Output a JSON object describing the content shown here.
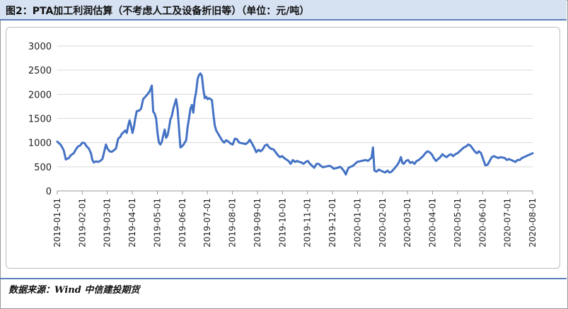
{
  "header": {
    "title": "图2：PTA加工利润估算（不考虑人工及设备折旧等）（单位：元/吨）"
  },
  "footer": {
    "source": "数据来源：Wind  中信建投期货"
  },
  "colors": {
    "line": "#4472c4",
    "header_bg": "#d6e2f2",
    "rule": "#5b7fb8"
  },
  "chart_data": {
    "type": "line",
    "title": "PTA加工利润估算（不考虑人工及设备折旧等）",
    "xlabel": "",
    "ylabel": "元/吨",
    "ylim": [
      0,
      3000
    ],
    "yticks": [
      0,
      500,
      1000,
      1500,
      2000,
      2500,
      3000
    ],
    "xticks": [
      "2019-01-01",
      "2019-02-01",
      "2019-03-01",
      "2019-04-01",
      "2019-05-01",
      "2019-06-01",
      "2019-07-01",
      "2019-08-01",
      "2019-09-01",
      "2019-10-01",
      "2019-11-01",
      "2019-12-01",
      "2020-01-01",
      "2020-02-01",
      "2020-03-01",
      "2020-04-01",
      "2020-05-01",
      "2020-06-01",
      "2020-07-01",
      "2020-08-01"
    ],
    "legend": "none",
    "series": [
      {
        "name": "PTA加工利润",
        "points": [
          [
            0,
            1020
          ],
          [
            5,
            950
          ],
          [
            9,
            840
          ],
          [
            12,
            650
          ],
          [
            16,
            680
          ],
          [
            19,
            740
          ],
          [
            23,
            780
          ],
          [
            26,
            860
          ],
          [
            29,
            920
          ],
          [
            32,
            940
          ],
          [
            35,
            1000
          ],
          [
            38,
            990
          ],
          [
            41,
            920
          ],
          [
            44,
            880
          ],
          [
            47,
            780
          ],
          [
            49,
            640
          ],
          [
            51,
            590
          ],
          [
            54,
            610
          ],
          [
            57,
            600
          ],
          [
            60,
            620
          ],
          [
            63,
            660
          ],
          [
            66,
            840
          ],
          [
            68,
            960
          ],
          [
            70,
            880
          ],
          [
            73,
            820
          ],
          [
            76,
            810
          ],
          [
            79,
            840
          ],
          [
            82,
            880
          ],
          [
            85,
            1080
          ],
          [
            88,
            1120
          ],
          [
            90,
            1180
          ],
          [
            93,
            1220
          ],
          [
            95,
            1250
          ],
          [
            97,
            1200
          ],
          [
            99,
            1350
          ],
          [
            101,
            1460
          ],
          [
            103,
            1350
          ],
          [
            105,
            1200
          ],
          [
            107,
            1320
          ],
          [
            109,
            1500
          ],
          [
            111,
            1650
          ],
          [
            114,
            1660
          ],
          [
            117,
            1700
          ],
          [
            120,
            1900
          ],
          [
            123,
            1950
          ],
          [
            126,
            2000
          ],
          [
            129,
            2060
          ],
          [
            132,
            2180
          ],
          [
            134,
            1640
          ],
          [
            136,
            1600
          ],
          [
            138,
            1500
          ],
          [
            140,
            1200
          ],
          [
            142,
            1000
          ],
          [
            144,
            960
          ],
          [
            146,
            1020
          ],
          [
            148,
            1150
          ],
          [
            150,
            1270
          ],
          [
            152,
            1100
          ],
          [
            154,
            1150
          ],
          [
            156,
            1300
          ],
          [
            158,
            1480
          ],
          [
            160,
            1550
          ],
          [
            162,
            1700
          ],
          [
            164,
            1800
          ],
          [
            166,
            1900
          ],
          [
            168,
            1700
          ],
          [
            170,
            1300
          ],
          [
            172,
            900
          ],
          [
            174,
            920
          ],
          [
            176,
            950
          ],
          [
            178,
            1000
          ],
          [
            180,
            1050
          ],
          [
            182,
            1320
          ],
          [
            184,
            1500
          ],
          [
            186,
            1700
          ],
          [
            188,
            1780
          ],
          [
            190,
            1620
          ],
          [
            192,
            1900
          ],
          [
            194,
            2050
          ],
          [
            196,
            2320
          ],
          [
            198,
            2400
          ],
          [
            200,
            2430
          ],
          [
            202,
            2380
          ],
          [
            204,
            2100
          ],
          [
            206,
            1920
          ],
          [
            208,
            1950
          ],
          [
            210,
            1900
          ],
          [
            212,
            1920
          ],
          [
            214,
            1900
          ],
          [
            216,
            1880
          ],
          [
            218,
            1600
          ],
          [
            220,
            1350
          ],
          [
            222,
            1250
          ],
          [
            224,
            1200
          ],
          [
            226,
            1150
          ],
          [
            228,
            1100
          ],
          [
            230,
            1050
          ],
          [
            233,
            1000
          ],
          [
            236,
            1050
          ],
          [
            239,
            1020
          ],
          [
            242,
            980
          ],
          [
            245,
            960
          ],
          [
            248,
            1080
          ],
          [
            251,
            1070
          ],
          [
            254,
            1000
          ],
          [
            257,
            990
          ],
          [
            260,
            980
          ],
          [
            263,
            970
          ],
          [
            266,
            1000
          ],
          [
            269,
            1060
          ],
          [
            272,
            980
          ],
          [
            275,
            900
          ],
          [
            278,
            800
          ],
          [
            281,
            850
          ],
          [
            284,
            820
          ],
          [
            287,
            860
          ],
          [
            290,
            940
          ],
          [
            293,
            960
          ],
          [
            296,
            900
          ],
          [
            299,
            870
          ],
          [
            302,
            860
          ],
          [
            305,
            800
          ],
          [
            308,
            740
          ],
          [
            311,
            700
          ],
          [
            314,
            720
          ],
          [
            317,
            680
          ],
          [
            320,
            650
          ],
          [
            323,
            620
          ],
          [
            326,
            560
          ],
          [
            329,
            640
          ],
          [
            332,
            600
          ],
          [
            335,
            620
          ],
          [
            338,
            600
          ],
          [
            341,
            590
          ],
          [
            344,
            560
          ],
          [
            347,
            600
          ],
          [
            350,
            620
          ],
          [
            353,
            560
          ],
          [
            356,
            520
          ],
          [
            359,
            480
          ],
          [
            362,
            560
          ],
          [
            365,
            560
          ],
          [
            368,
            520
          ],
          [
            371,
            490
          ],
          [
            374,
            500
          ],
          [
            377,
            510
          ],
          [
            380,
            520
          ],
          [
            383,
            500
          ],
          [
            386,
            460
          ],
          [
            389,
            470
          ],
          [
            392,
            480
          ],
          [
            395,
            500
          ],
          [
            398,
            460
          ],
          [
            401,
            400
          ],
          [
            403,
            340
          ],
          [
            405,
            420
          ],
          [
            407,
            480
          ],
          [
            410,
            500
          ],
          [
            413,
            520
          ],
          [
            416,
            560
          ],
          [
            419,
            600
          ],
          [
            422,
            610
          ],
          [
            425,
            620
          ],
          [
            428,
            630
          ],
          [
            431,
            640
          ],
          [
            434,
            620
          ],
          [
            437,
            660
          ],
          [
            439,
            690
          ],
          [
            441,
            900
          ],
          [
            443,
            420
          ],
          [
            446,
            400
          ],
          [
            449,
            440
          ],
          [
            452,
            420
          ],
          [
            455,
            400
          ],
          [
            458,
            380
          ],
          [
            461,
            420
          ],
          [
            464,
            380
          ],
          [
            467,
            400
          ],
          [
            470,
            450
          ],
          [
            473,
            500
          ],
          [
            476,
            560
          ],
          [
            478,
            620
          ],
          [
            480,
            700
          ],
          [
            482,
            580
          ],
          [
            484,
            560
          ],
          [
            487,
            620
          ],
          [
            490,
            640
          ],
          [
            493,
            580
          ],
          [
            496,
            600
          ],
          [
            499,
            560
          ],
          [
            502,
            620
          ],
          [
            505,
            640
          ],
          [
            508,
            680
          ],
          [
            511,
            720
          ],
          [
            514,
            780
          ],
          [
            517,
            820
          ],
          [
            520,
            800
          ],
          [
            523,
            760
          ],
          [
            526,
            680
          ],
          [
            529,
            620
          ],
          [
            532,
            660
          ],
          [
            535,
            700
          ],
          [
            538,
            760
          ],
          [
            541,
            720
          ],
          [
            544,
            700
          ],
          [
            547,
            740
          ],
          [
            550,
            760
          ],
          [
            553,
            720
          ],
          [
            556,
            760
          ],
          [
            559,
            780
          ],
          [
            562,
            820
          ],
          [
            565,
            860
          ],
          [
            568,
            900
          ],
          [
            571,
            920
          ],
          [
            574,
            960
          ],
          [
            577,
            940
          ],
          [
            580,
            880
          ],
          [
            583,
            820
          ],
          [
            586,
            780
          ],
          [
            589,
            820
          ],
          [
            592,
            780
          ],
          [
            595,
            650
          ],
          [
            598,
            530
          ],
          [
            601,
            540
          ],
          [
            604,
            620
          ],
          [
            607,
            700
          ],
          [
            610,
            720
          ],
          [
            613,
            700
          ],
          [
            616,
            680
          ],
          [
            619,
            700
          ],
          [
            622,
            690
          ],
          [
            625,
            680
          ],
          [
            628,
            640
          ],
          [
            631,
            660
          ],
          [
            634,
            640
          ],
          [
            637,
            620
          ],
          [
            640,
            600
          ],
          [
            643,
            640
          ],
          [
            646,
            640
          ],
          [
            649,
            680
          ],
          [
            652,
            700
          ],
          [
            655,
            720
          ],
          [
            658,
            740
          ],
          [
            661,
            760
          ],
          [
            664,
            780
          ]
        ]
      }
    ]
  }
}
